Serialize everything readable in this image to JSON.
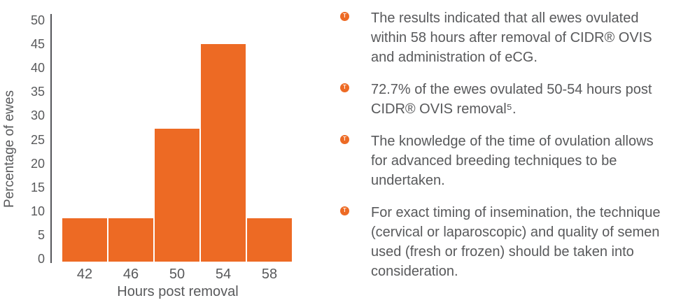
{
  "colors": {
    "accent_orange": "#ED6A24",
    "text_gray": "#58595B",
    "axis_gray": "#55565A"
  },
  "chart_data": {
    "type": "bar",
    "categories": [
      "42",
      "46",
      "50",
      "54",
      "58"
    ],
    "values": [
      8.5,
      8.5,
      27.3,
      45,
      8.5
    ],
    "title": "",
    "xlabel": "Hours post removal",
    "ylabel": "Percentage of ewes",
    "ylim": [
      0,
      50
    ],
    "yticks": [
      0,
      5,
      10,
      15,
      20,
      25,
      30,
      35,
      40,
      45,
      50
    ],
    "bar_color": "#ED6A24",
    "grid": false,
    "legend": false
  },
  "bullets": {
    "icon": "cidr-device-dot-icon",
    "icon_glyph": "T",
    "items": [
      {
        "text": "The results indicated that all ewes ovulated within 58 hours after removal of CIDR® OVIS and administration of eCG."
      },
      {
        "text": "72.7% of the ewes ovulated 50-54 hours post CIDR® OVIS removal⁵."
      },
      {
        "text": "The knowledge of the time of ovulation allows for advanced breeding techniques to be undertaken."
      },
      {
        "text": "For exact timing of insemination, the technique (cervical or laparoscopic) and quality of semen used (fresh or frozen) should be taken into consideration."
      }
    ]
  }
}
